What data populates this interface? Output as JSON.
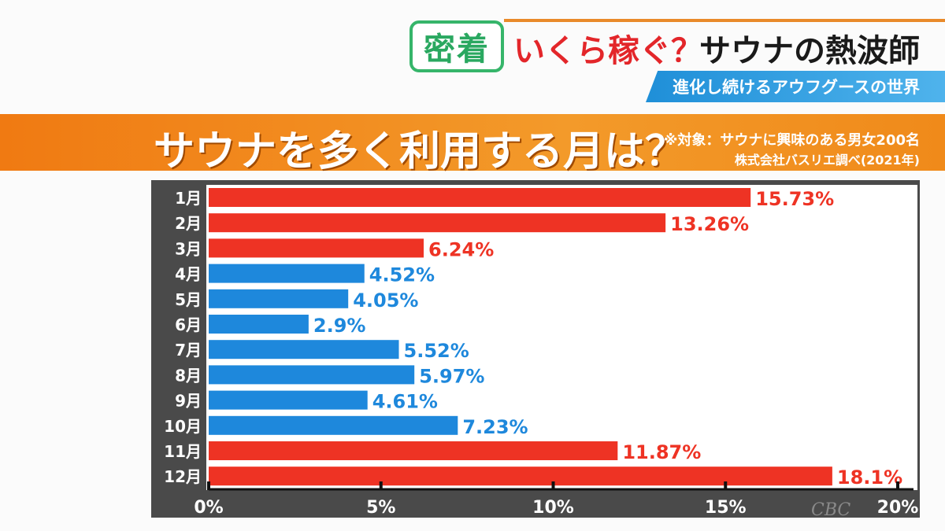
{
  "header": {
    "badge": "密着",
    "title_red": "いくら稼ぐ？",
    "title_black": "サウナの熱波師",
    "subtitle": "進化し続けるアウフグースの世界"
  },
  "watermark": "CBC",
  "colors": {
    "high": "#ee3324",
    "low": "#1e88dc",
    "banner": "#f08a1a",
    "frame": "#4a4a4a"
  },
  "chart_data": {
    "type": "bar",
    "orientation": "horizontal",
    "title": "サウナを多く利用する月は？",
    "note_1": "※対象：サウナに興味のある男女200名",
    "note_2": "株式会社バスリエ調べ(2021年)",
    "categories": [
      "1月",
      "2月",
      "3月",
      "4月",
      "5月",
      "6月",
      "7月",
      "8月",
      "9月",
      "10月",
      "11月",
      "12月"
    ],
    "values": [
      15.73,
      13.26,
      6.24,
      4.52,
      4.05,
      2.9,
      5.52,
      5.97,
      4.61,
      7.23,
      11.87,
      18.1
    ],
    "value_labels": [
      "15.73%",
      "13.26%",
      "6.24%",
      "4.52%",
      "4.05%",
      "2.9%",
      "5.52%",
      "5.97%",
      "4.61%",
      "7.23%",
      "11.87%",
      "18.1%"
    ],
    "bar_colors": [
      "high",
      "high",
      "high",
      "low",
      "low",
      "low",
      "low",
      "low",
      "low",
      "low",
      "high",
      "high"
    ],
    "xlim": [
      0,
      20
    ],
    "xticks": [
      "0%",
      "5%",
      "10%",
      "15%",
      "20%"
    ],
    "grid": false
  }
}
